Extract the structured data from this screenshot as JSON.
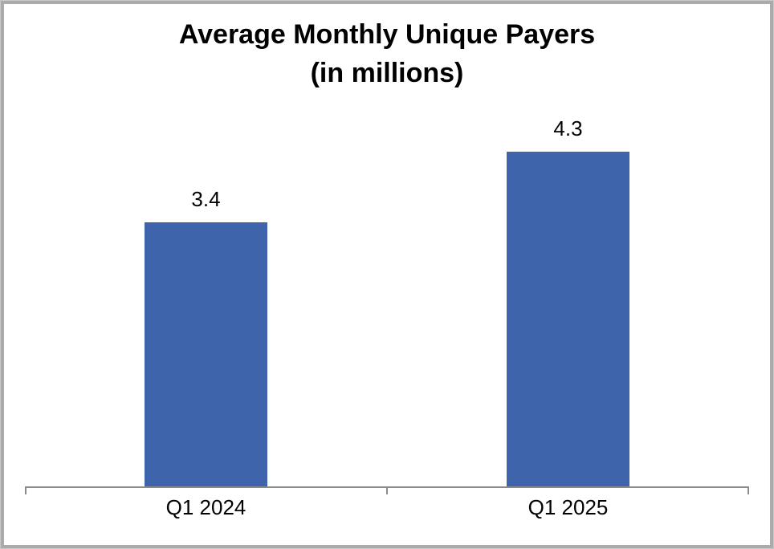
{
  "chart_data": {
    "type": "bar",
    "title": "Average Monthly Unique Payers",
    "title_line2": "(in millions)",
    "categories": [
      "Q1 2024",
      "Q1 2025"
    ],
    "values": [
      3.4,
      4.3
    ],
    "data_labels": [
      "3.4",
      "4.3"
    ],
    "ylim": [
      0,
      4.8
    ],
    "xlabel": "",
    "ylabel": "",
    "grid": false,
    "legend": false,
    "bar_color": "#3e64ac",
    "axis_color": "#8a8a8a",
    "text_color": "#000000",
    "frame_border_color": "#ababab"
  }
}
